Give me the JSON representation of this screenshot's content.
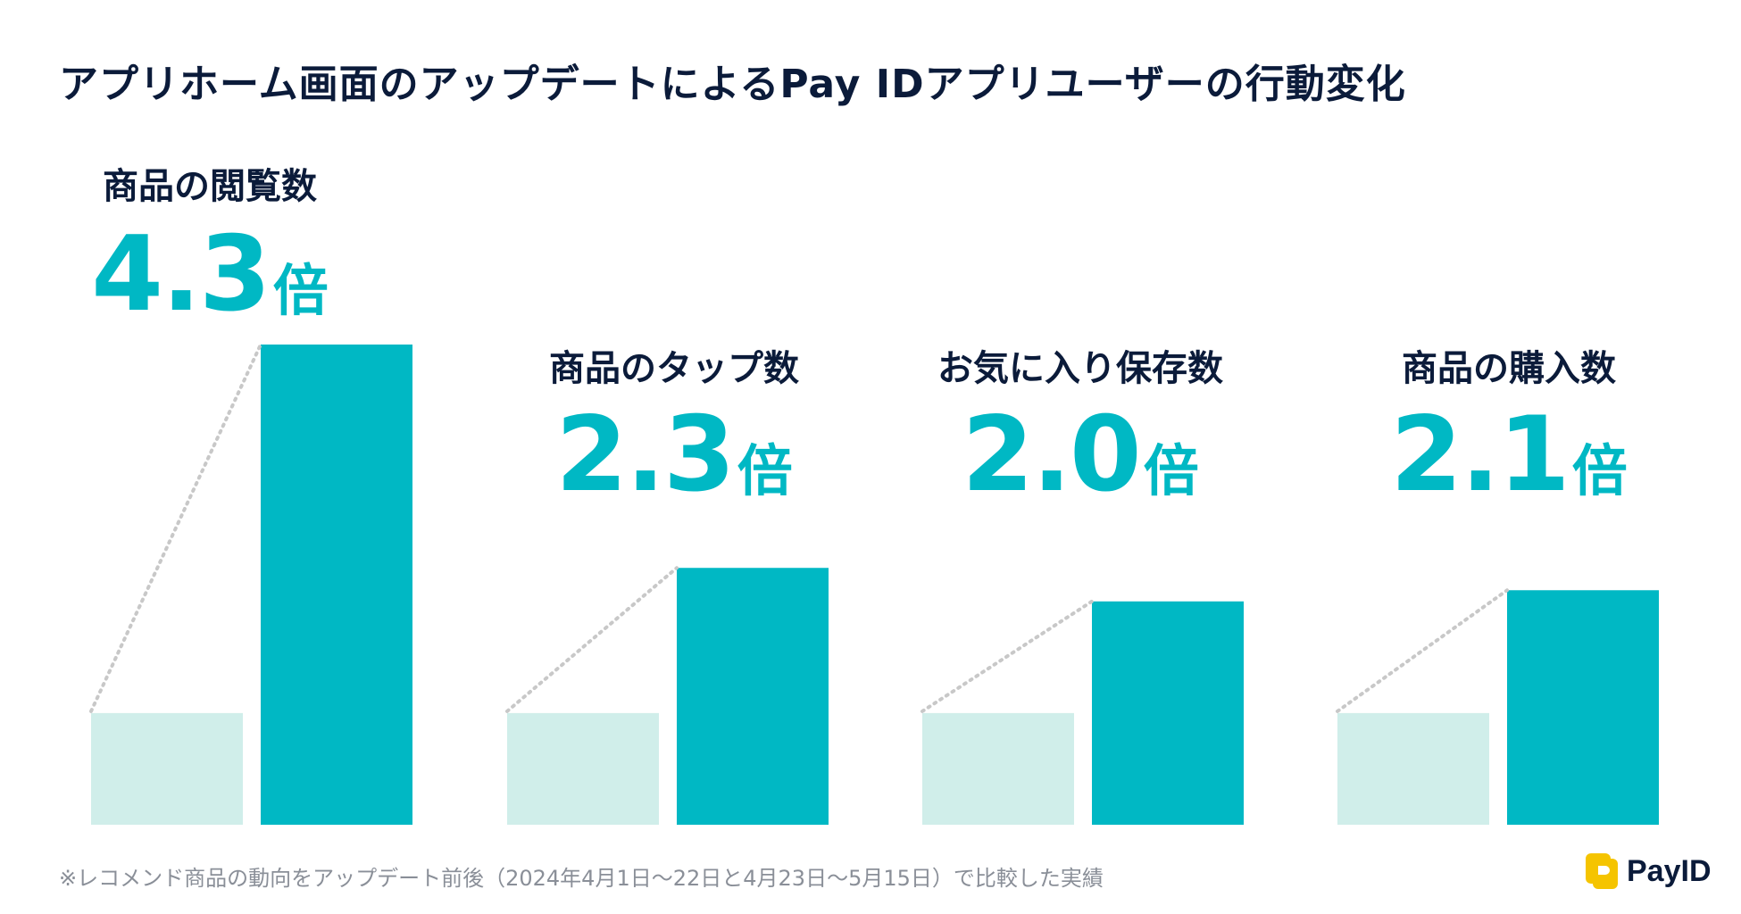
{
  "title": "アプリホーム画面のアップデートによるPay IDアプリユーザーの行動変化",
  "footnote": "※レコメンド商品の動向をアップデート前後（2024年4月1日〜22日と4月23日〜5月15日）で比較した実績",
  "logo": {
    "text": "PayID",
    "icon": "payid-logo-icon"
  },
  "colors": {
    "before": "#d0eeea",
    "after": "#00b8c4",
    "accent": "#00b8c4",
    "title": "#0b1b3a",
    "connector": "#c8c8c8"
  },
  "chart_data": {
    "type": "bar",
    "categories": [
      "商品の閲覧数",
      "商品のタップ数",
      "お気に入り保存数",
      "商品の購入数"
    ],
    "series": [
      {
        "values": [
          1,
          1,
          1,
          1
        ]
      },
      {
        "values": [
          4.3,
          2.3,
          2.0,
          2.1
        ]
      }
    ],
    "multipliers": [
      "4.3",
      "2.3",
      "2.0",
      "2.1"
    ],
    "unit": "倍",
    "ylim": [
      0,
      4.3
    ],
    "grid": false,
    "legend": "none"
  }
}
